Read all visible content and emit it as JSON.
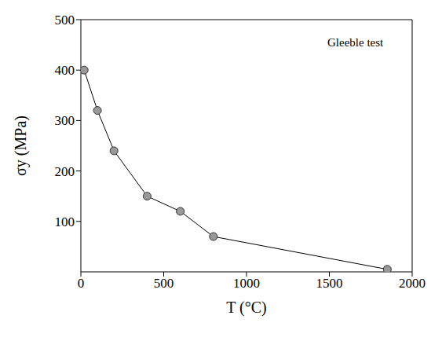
{
  "chart_data": {
    "type": "line",
    "x_label": "T (°C)",
    "y_label": "σy (MPa)",
    "annotation": "Gleeble test",
    "x": [
      20,
      100,
      200,
      400,
      600,
      800,
      1850
    ],
    "values": [
      400,
      320,
      240,
      150,
      120,
      70,
      5
    ],
    "color": "#000000",
    "marker": "circle",
    "xlim": [
      0,
      2000
    ],
    "xticks": [
      0,
      500,
      1000,
      1500,
      2000
    ],
    "ylim": [
      0,
      500
    ],
    "yticks": [
      100,
      200,
      300,
      400,
      500
    ],
    "grid": false
  }
}
